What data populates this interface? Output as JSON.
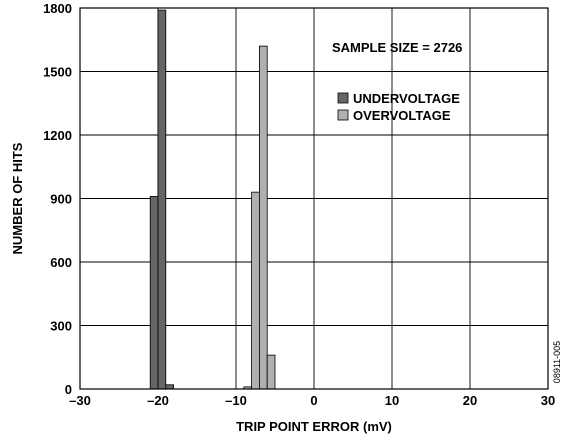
{
  "chart_data": {
    "type": "bar",
    "xlabel": "TRIP POINT ERROR (mV)",
    "ylabel": "NUMBER OF HITS",
    "xlim": [
      -30,
      30
    ],
    "ylim": [
      0,
      1800
    ],
    "x_ticks": [
      -30,
      -20,
      -10,
      0,
      10,
      20,
      30
    ],
    "x_tick_labels": [
      "–30",
      "–20",
      "–10",
      "0",
      "10",
      "20",
      "30"
    ],
    "y_ticks": [
      0,
      300,
      600,
      900,
      1200,
      1500,
      1800
    ],
    "y_tick_labels": [
      "0",
      "300",
      "600",
      "900",
      "1200",
      "1500",
      "1800"
    ],
    "grid": true,
    "bin_width": 1,
    "series": [
      {
        "name": "UNDERVOLTAGE",
        "color": "#666666",
        "x": [
          -20.5,
          -19.5,
          -18.5
        ],
        "values": [
          910,
          1790,
          20
        ]
      },
      {
        "name": "OVERVOLTAGE",
        "color": "#b0b0b0",
        "x": [
          -8.5,
          -7.5,
          -6.5,
          -5.5
        ],
        "values": [
          10,
          930,
          1620,
          160
        ]
      }
    ],
    "annotation": "SAMPLE SIZE = 2726",
    "legend_position": "top-right",
    "figure_id": "08911-005"
  }
}
